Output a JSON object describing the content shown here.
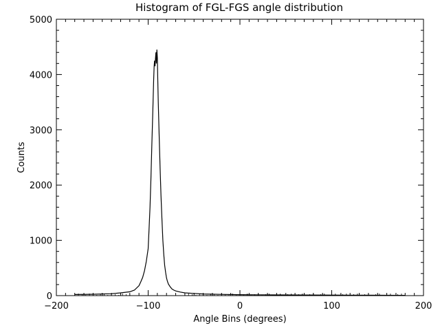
{
  "chart_data": {
    "type": "line",
    "title": "Histogram of FGL-FGS angle distribution",
    "xlabel": "Angle Bins (degrees)",
    "ylabel": "Counts",
    "xlim": [
      -200,
      200
    ],
    "ylim": [
      0,
      5000
    ],
    "x_ticks": [
      -200,
      -100,
      0,
      100,
      200
    ],
    "y_ticks": [
      0,
      1000,
      2000,
      3000,
      4000,
      5000
    ],
    "x_tick_labels": [
      "−200",
      "−100",
      "0",
      "100",
      "200"
    ],
    "y_tick_labels": [
      "0",
      "1000",
      "2000",
      "3000",
      "4000",
      "5000"
    ],
    "grid": false,
    "legend": "none",
    "line_color": "#000000",
    "series": [
      {
        "x": [
          -180,
          -160,
          -140,
          -130,
          -120,
          -115,
          -110,
          -108,
          -106,
          -104,
          -102,
          -100,
          -99,
          -98,
          -97,
          -96,
          -95,
          -94,
          -93.5,
          -93,
          -92.5,
          -92,
          -91.5,
          -91,
          -90.5,
          -90,
          -89.5,
          -89,
          -88,
          -87,
          -86,
          -85,
          -84,
          -83,
          -82,
          -81,
          -80,
          -79,
          -78,
          -76,
          -74,
          -72,
          -70,
          -65,
          -60,
          -50,
          -40,
          -20,
          0,
          20,
          50,
          100,
          140,
          180
        ],
        "y": [
          20,
          25,
          35,
          50,
          70,
          100,
          180,
          250,
          330,
          450,
          620,
          850,
          1200,
          1600,
          2100,
          2700,
          3300,
          3900,
          4150,
          4250,
          4150,
          4300,
          4400,
          4200,
          4450,
          4300,
          3900,
          3500,
          2900,
          2300,
          1800,
          1400,
          1000,
          750,
          550,
          420,
          320,
          260,
          210,
          160,
          120,
          100,
          85,
          65,
          50,
          40,
          30,
          22,
          18,
          15,
          12,
          10,
          8,
          5
        ]
      }
    ]
  }
}
